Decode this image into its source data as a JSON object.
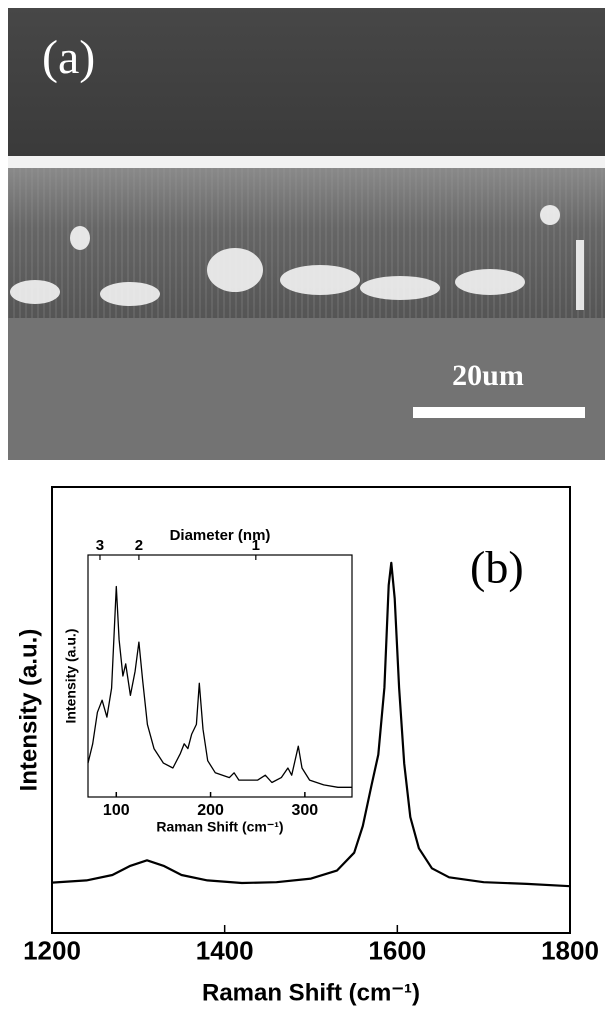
{
  "panel_a": {
    "label": "(a)",
    "scale_bar": "20um"
  },
  "chart_data": [
    {
      "type": "line",
      "annotation": "(b)",
      "xlabel": "Raman Shift (cm⁻¹)",
      "ylabel": "Intensity (a.u.)",
      "xlim": [
        1200,
        1800
      ],
      "xticks": [
        1200,
        1400,
        1600,
        1800
      ],
      "ylim": [
        0,
        100
      ],
      "color": "#000000",
      "x": [
        1200,
        1240,
        1270,
        1290,
        1310,
        1330,
        1350,
        1380,
        1420,
        1460,
        1500,
        1530,
        1550,
        1560,
        1570,
        1578,
        1585,
        1590,
        1593,
        1597,
        1602,
        1608,
        1615,
        1625,
        1640,
        1660,
        1700,
        1750,
        1800
      ],
      "values": [
        11.3,
        11.8,
        13,
        15,
        16.3,
        15,
        13,
        11.8,
        11.2,
        11.4,
        12.2,
        14,
        18,
        24,
        33,
        40,
        55,
        78,
        83,
        75,
        55,
        38,
        26,
        19,
        14.5,
        12.5,
        11.4,
        11,
        10.5
      ]
    },
    {
      "type": "line",
      "xlabel": "Raman Shift (cm⁻¹)",
      "ylabel": "Intensity (a.u.)",
      "x2label": "Diameter (nm)",
      "xlim": [
        70,
        350
      ],
      "xticks": [
        100,
        200,
        300
      ],
      "ylim": [
        0,
        100
      ],
      "color": "#000000",
      "x2ticks": [
        {
          "value": 82.7,
          "label": "3"
        },
        {
          "value": 124,
          "label": "2"
        },
        {
          "value": 248,
          "label": "1"
        }
      ],
      "x": [
        70,
        75,
        80,
        85,
        90,
        95,
        100,
        103,
        107,
        110,
        115,
        120,
        124,
        128,
        133,
        140,
        150,
        160,
        168,
        172,
        176,
        180,
        185,
        188,
        192,
        197,
        205,
        220,
        225,
        230,
        250,
        258,
        265,
        275,
        282,
        286,
        293,
        297,
        305,
        320,
        335,
        350
      ],
      "values": [
        14,
        22,
        35,
        40,
        33,
        45,
        87,
        65,
        50,
        55,
        42,
        52,
        64,
        48,
        30,
        20,
        14,
        12,
        18,
        22,
        20,
        26,
        30,
        47,
        28,
        15,
        10,
        8,
        10,
        7,
        7,
        9,
        6,
        8,
        12,
        9,
        21,
        12,
        7,
        5,
        4,
        4
      ]
    }
  ]
}
